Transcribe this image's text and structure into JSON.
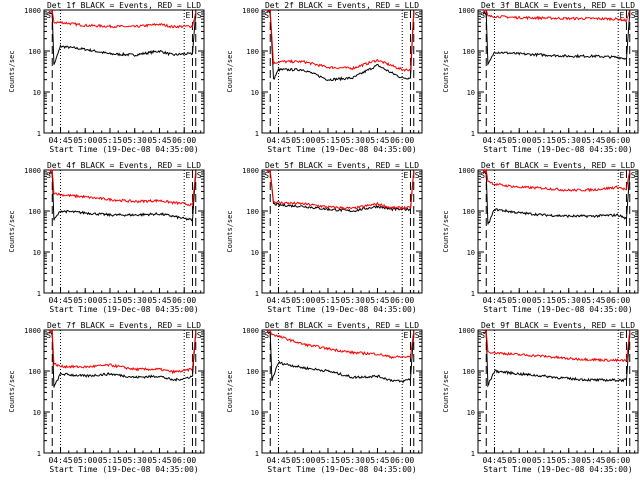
{
  "figure": {
    "ylabel": "Counts/sec",
    "xlabel": "Start Time (19-Dec-08 04:35:00)",
    "ytick_labels": [
      "1",
      "10",
      "100",
      "1000"
    ],
    "xtick_labels": [
      "04:45",
      "05:00",
      "05:15",
      "05:30",
      "05:45",
      "06:00"
    ],
    "marker_S": "S",
    "marker_E": "E",
    "series_colors": {
      "events": "#000000",
      "lld": "#ff0000"
    }
  },
  "chart_data": [
    {
      "type": "line",
      "title": "Det 1f BLACK = Events, RED = LLD",
      "yscale": "log",
      "ylim": [
        1,
        1000
      ],
      "xlim": [
        "04:35",
        "06:12"
      ],
      "series": [
        {
          "color": "#000000",
          "x": [
            "04:38",
            "04:40",
            "04:41",
            "04:45",
            "05:00",
            "05:15",
            "05:30",
            "05:45",
            "05:53",
            "06:00",
            "06:05",
            "06:07"
          ],
          "values": [
            850,
            850,
            45,
            130,
            110,
            85,
            80,
            100,
            80,
            85,
            85,
            850
          ]
        },
        {
          "color": "#ff0000",
          "x": [
            "04:38",
            "04:40",
            "04:41",
            "04:45",
            "05:00",
            "05:15",
            "05:30",
            "05:45",
            "05:53",
            "06:00",
            "06:05",
            "06:07"
          ],
          "values": [
            900,
            900,
            500,
            500,
            420,
            400,
            390,
            450,
            390,
            400,
            400,
            900
          ]
        }
      ]
    },
    {
      "type": "line",
      "title": "Det 2f BLACK = Events, RED = LLD",
      "yscale": "log",
      "ylim": [
        1,
        1000
      ],
      "xlim": [
        "04:35",
        "06:12"
      ],
      "series": [
        {
          "color": "#000000",
          "x": [
            "04:38",
            "04:40",
            "04:42",
            "04:45",
            "05:00",
            "05:15",
            "05:30",
            "05:45",
            "05:53",
            "06:00",
            "06:05",
            "06:07"
          ],
          "values": [
            900,
            900,
            20,
            35,
            35,
            20,
            22,
            45,
            30,
            22,
            22,
            900
          ]
        },
        {
          "color": "#ff0000",
          "x": [
            "04:38",
            "04:40",
            "04:42",
            "04:45",
            "05:00",
            "05:15",
            "05:30",
            "05:45",
            "05:53",
            "06:00",
            "06:05",
            "06:07"
          ],
          "values": [
            950,
            950,
            50,
            55,
            55,
            40,
            38,
            60,
            45,
            35,
            35,
            950
          ]
        }
      ]
    },
    {
      "type": "line",
      "title": "Det 3f BLACK = Events, RED = LLD",
      "yscale": "log",
      "ylim": [
        1,
        1000
      ],
      "xlim": [
        "04:35",
        "06:12"
      ],
      "series": [
        {
          "color": "#000000",
          "x": [
            "04:38",
            "04:40",
            "04:41",
            "04:45",
            "05:00",
            "05:15",
            "05:30",
            "05:45",
            "06:00",
            "06:05",
            "06:07"
          ],
          "values": [
            850,
            850,
            45,
            95,
            85,
            80,
            75,
            75,
            70,
            65,
            850
          ]
        },
        {
          "color": "#ff0000",
          "x": [
            "04:38",
            "04:40",
            "04:41",
            "04:45",
            "05:00",
            "05:15",
            "05:30",
            "05:45",
            "06:00",
            "06:05",
            "06:07"
          ],
          "values": [
            950,
            950,
            700,
            700,
            650,
            640,
            620,
            620,
            600,
            550,
            950
          ]
        }
      ]
    },
    {
      "type": "line",
      "title": "Det 4f BLACK = Events, RED = LLD",
      "yscale": "log",
      "ylim": [
        1,
        1000
      ],
      "xlim": [
        "04:35",
        "06:12"
      ],
      "series": [
        {
          "color": "#000000",
          "x": [
            "04:38",
            "04:40",
            "04:41",
            "04:45",
            "05:00",
            "05:15",
            "05:30",
            "05:45",
            "05:53",
            "06:00",
            "06:05",
            "06:07"
          ],
          "values": [
            850,
            850,
            60,
            100,
            90,
            80,
            80,
            85,
            75,
            65,
            60,
            850
          ]
        },
        {
          "color": "#ff0000",
          "x": [
            "04:38",
            "04:40",
            "04:41",
            "04:45",
            "05:00",
            "05:15",
            "05:30",
            "05:45",
            "05:53",
            "06:00",
            "06:05",
            "06:07"
          ],
          "values": [
            950,
            950,
            280,
            250,
            220,
            190,
            170,
            180,
            160,
            150,
            140,
            950
          ]
        }
      ]
    },
    {
      "type": "line",
      "title": "Det 5f BLACK = Events, RED = LLD",
      "yscale": "log",
      "ylim": [
        1,
        1000
      ],
      "xlim": [
        "04:35",
        "06:12"
      ],
      "series": [
        {
          "color": "#000000",
          "x": [
            "04:38",
            "04:40",
            "04:42",
            "04:45",
            "05:00",
            "05:15",
            "05:30",
            "05:45",
            "05:53",
            "06:00",
            "06:05",
            "06:07"
          ],
          "values": [
            900,
            900,
            150,
            140,
            130,
            110,
            100,
            130,
            110,
            110,
            110,
            900
          ]
        },
        {
          "color": "#ff0000",
          "x": [
            "04:38",
            "04:40",
            "04:42",
            "04:45",
            "05:00",
            "05:15",
            "05:30",
            "05:45",
            "05:53",
            "06:00",
            "06:05",
            "06:07"
          ],
          "values": [
            950,
            950,
            170,
            160,
            150,
            125,
            115,
            150,
            120,
            120,
            120,
            950
          ]
        }
      ]
    },
    {
      "type": "line",
      "title": "Det 6f BLACK = Events, RED = LLD",
      "yscale": "log",
      "ylim": [
        1,
        1000
      ],
      "xlim": [
        "04:35",
        "06:12"
      ],
      "series": [
        {
          "color": "#000000",
          "x": [
            "04:38",
            "04:40",
            "04:41",
            "04:45",
            "05:00",
            "05:15",
            "05:30",
            "05:45",
            "06:00",
            "06:05",
            "06:07"
          ],
          "values": [
            850,
            850,
            45,
            110,
            90,
            80,
            75,
            75,
            80,
            65,
            850
          ]
        },
        {
          "color": "#ff0000",
          "x": [
            "04:38",
            "04:40",
            "04:41",
            "04:45",
            "05:00",
            "05:15",
            "05:30",
            "05:45",
            "06:00",
            "06:05",
            "06:07"
          ],
          "values": [
            950,
            950,
            550,
            450,
            380,
            360,
            320,
            330,
            380,
            330,
            950
          ]
        }
      ]
    },
    {
      "type": "line",
      "title": "Det 7f BLACK = Events, RED = LLD",
      "yscale": "log",
      "ylim": [
        1,
        1000
      ],
      "xlim": [
        "04:35",
        "06:12"
      ],
      "series": [
        {
          "color": "#000000",
          "x": [
            "04:38",
            "04:40",
            "04:41",
            "04:45",
            "05:00",
            "05:15",
            "05:30",
            "05:45",
            "05:53",
            "06:00",
            "06:05",
            "06:07"
          ],
          "values": [
            850,
            850,
            40,
            85,
            75,
            85,
            70,
            75,
            60,
            65,
            75,
            850
          ]
        },
        {
          "color": "#ff0000",
          "x": [
            "04:38",
            "04:40",
            "04:41",
            "04:45",
            "05:00",
            "05:15",
            "05:30",
            "05:45",
            "05:53",
            "06:00",
            "06:05",
            "06:07"
          ],
          "values": [
            950,
            950,
            150,
            130,
            125,
            140,
            110,
            110,
            95,
            100,
            115,
            950
          ]
        }
      ]
    },
    {
      "type": "line",
      "title": "Det 8f BLACK = Events, RED = LLD",
      "yscale": "log",
      "ylim": [
        1,
        1000
      ],
      "xlim": [
        "04:35",
        "06:12"
      ],
      "series": [
        {
          "color": "#000000",
          "x": [
            "04:38",
            "04:40",
            "04:41",
            "04:45",
            "05:00",
            "05:15",
            "05:30",
            "05:45",
            "05:53",
            "06:00",
            "06:05",
            "06:07"
          ],
          "values": [
            850,
            850,
            60,
            160,
            120,
            100,
            70,
            75,
            60,
            55,
            65,
            850
          ]
        },
        {
          "color": "#ff0000",
          "x": [
            "04:38",
            "04:40",
            "04:41",
            "04:45",
            "05:00",
            "05:15",
            "05:30",
            "05:45",
            "05:53",
            "06:00",
            "06:05",
            "06:07"
          ],
          "values": [
            950,
            950,
            800,
            700,
            450,
            350,
            280,
            260,
            220,
            220,
            220,
            950
          ]
        }
      ]
    },
    {
      "type": "line",
      "title": "Det 9f BLACK = Events, RED = LLD",
      "yscale": "log",
      "ylim": [
        1,
        1000
      ],
      "xlim": [
        "04:35",
        "06:12"
      ],
      "series": [
        {
          "color": "#000000",
          "x": [
            "04:38",
            "04:40",
            "04:41",
            "04:45",
            "05:00",
            "05:15",
            "05:30",
            "05:45",
            "06:00",
            "06:05",
            "06:07"
          ],
          "values": [
            850,
            850,
            45,
            100,
            85,
            75,
            65,
            60,
            60,
            60,
            850
          ]
        },
        {
          "color": "#ff0000",
          "x": [
            "04:38",
            "04:40",
            "04:41",
            "04:45",
            "05:00",
            "05:15",
            "05:30",
            "05:45",
            "06:00",
            "06:05",
            "06:07"
          ],
          "values": [
            950,
            950,
            300,
            280,
            250,
            230,
            200,
            190,
            180,
            180,
            950
          ]
        }
      ]
    }
  ]
}
